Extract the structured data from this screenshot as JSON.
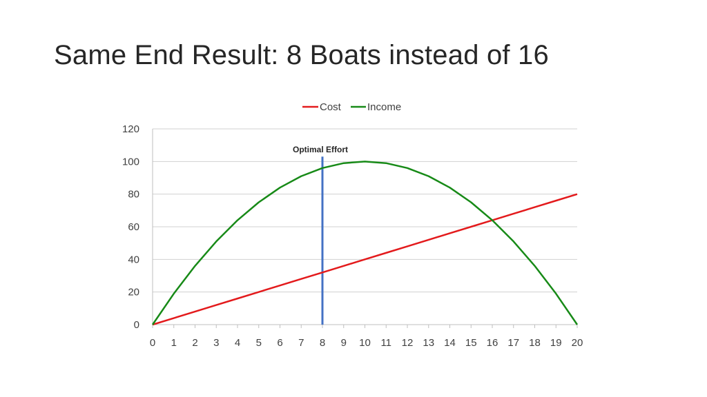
{
  "slide": {
    "title": "Same End Result: 8 Boats instead of 16"
  },
  "chart_data": {
    "type": "line",
    "x": [
      0,
      1,
      2,
      3,
      4,
      5,
      6,
      7,
      8,
      9,
      10,
      11,
      12,
      13,
      14,
      15,
      16,
      17,
      18,
      19,
      20
    ],
    "xlim": [
      0,
      20
    ],
    "ylim": [
      0,
      120
    ],
    "yticks": [
      0,
      20,
      40,
      60,
      80,
      100,
      120
    ],
    "xticks": [
      0,
      1,
      2,
      3,
      4,
      5,
      6,
      7,
      8,
      9,
      10,
      11,
      12,
      13,
      14,
      15,
      16,
      17,
      18,
      19,
      20
    ],
    "grid": "horizontal",
    "legend": "top-center",
    "series": [
      {
        "name": "Cost",
        "color": "#e31a1c",
        "values": [
          0,
          4,
          8,
          12,
          16,
          20,
          24,
          28,
          32,
          36,
          40,
          44,
          48,
          52,
          56,
          60,
          64,
          68,
          72,
          76,
          80
        ]
      },
      {
        "name": "Income",
        "color": "#178a17",
        "values": [
          0,
          19,
          36,
          51,
          64,
          75,
          84,
          91,
          96,
          99,
          100,
          99,
          96,
          91,
          84,
          75,
          64,
          51,
          36,
          19,
          0
        ]
      }
    ],
    "annotations": [
      {
        "text": "Optimal Effort",
        "x": 8,
        "y_top": 103,
        "color": "#4472c4"
      }
    ]
  }
}
